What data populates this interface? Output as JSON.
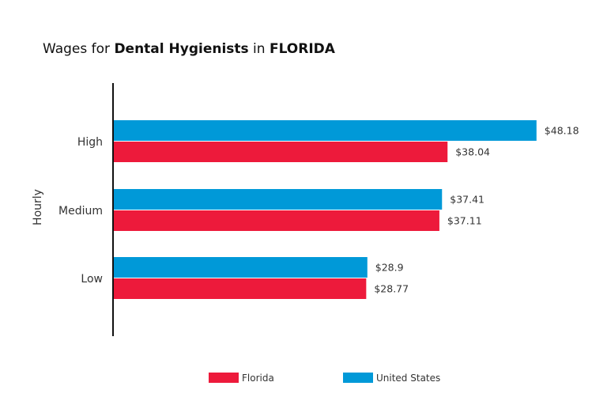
{
  "chart_data": {
    "type": "bar",
    "orientation": "horizontal",
    "title_parts": [
      {
        "text": "Wages for ",
        "bold": false
      },
      {
        "text": "Dental Hygienists",
        "bold": true
      },
      {
        "text": " in ",
        "bold": false
      },
      {
        "text": "FLORIDA",
        "bold": true
      }
    ],
    "ylabel": "Hourly",
    "xlabel": "",
    "categories": [
      "High",
      "Medium",
      "Low"
    ],
    "series": [
      {
        "name": "United States",
        "color": "#0099D8",
        "values": [
          48.18,
          37.41,
          28.9
        ],
        "labels": [
          "$48.18",
          "$37.41",
          "$28.9"
        ]
      },
      {
        "name": "Florida",
        "color": "#ED1A3B",
        "values": [
          38.04,
          37.11,
          28.77
        ],
        "labels": [
          "$38.04",
          "$37.11",
          "$28.77"
        ]
      }
    ],
    "legend_order": [
      "Florida",
      "United States"
    ],
    "legend_position": "bottom",
    "grid": false
  }
}
